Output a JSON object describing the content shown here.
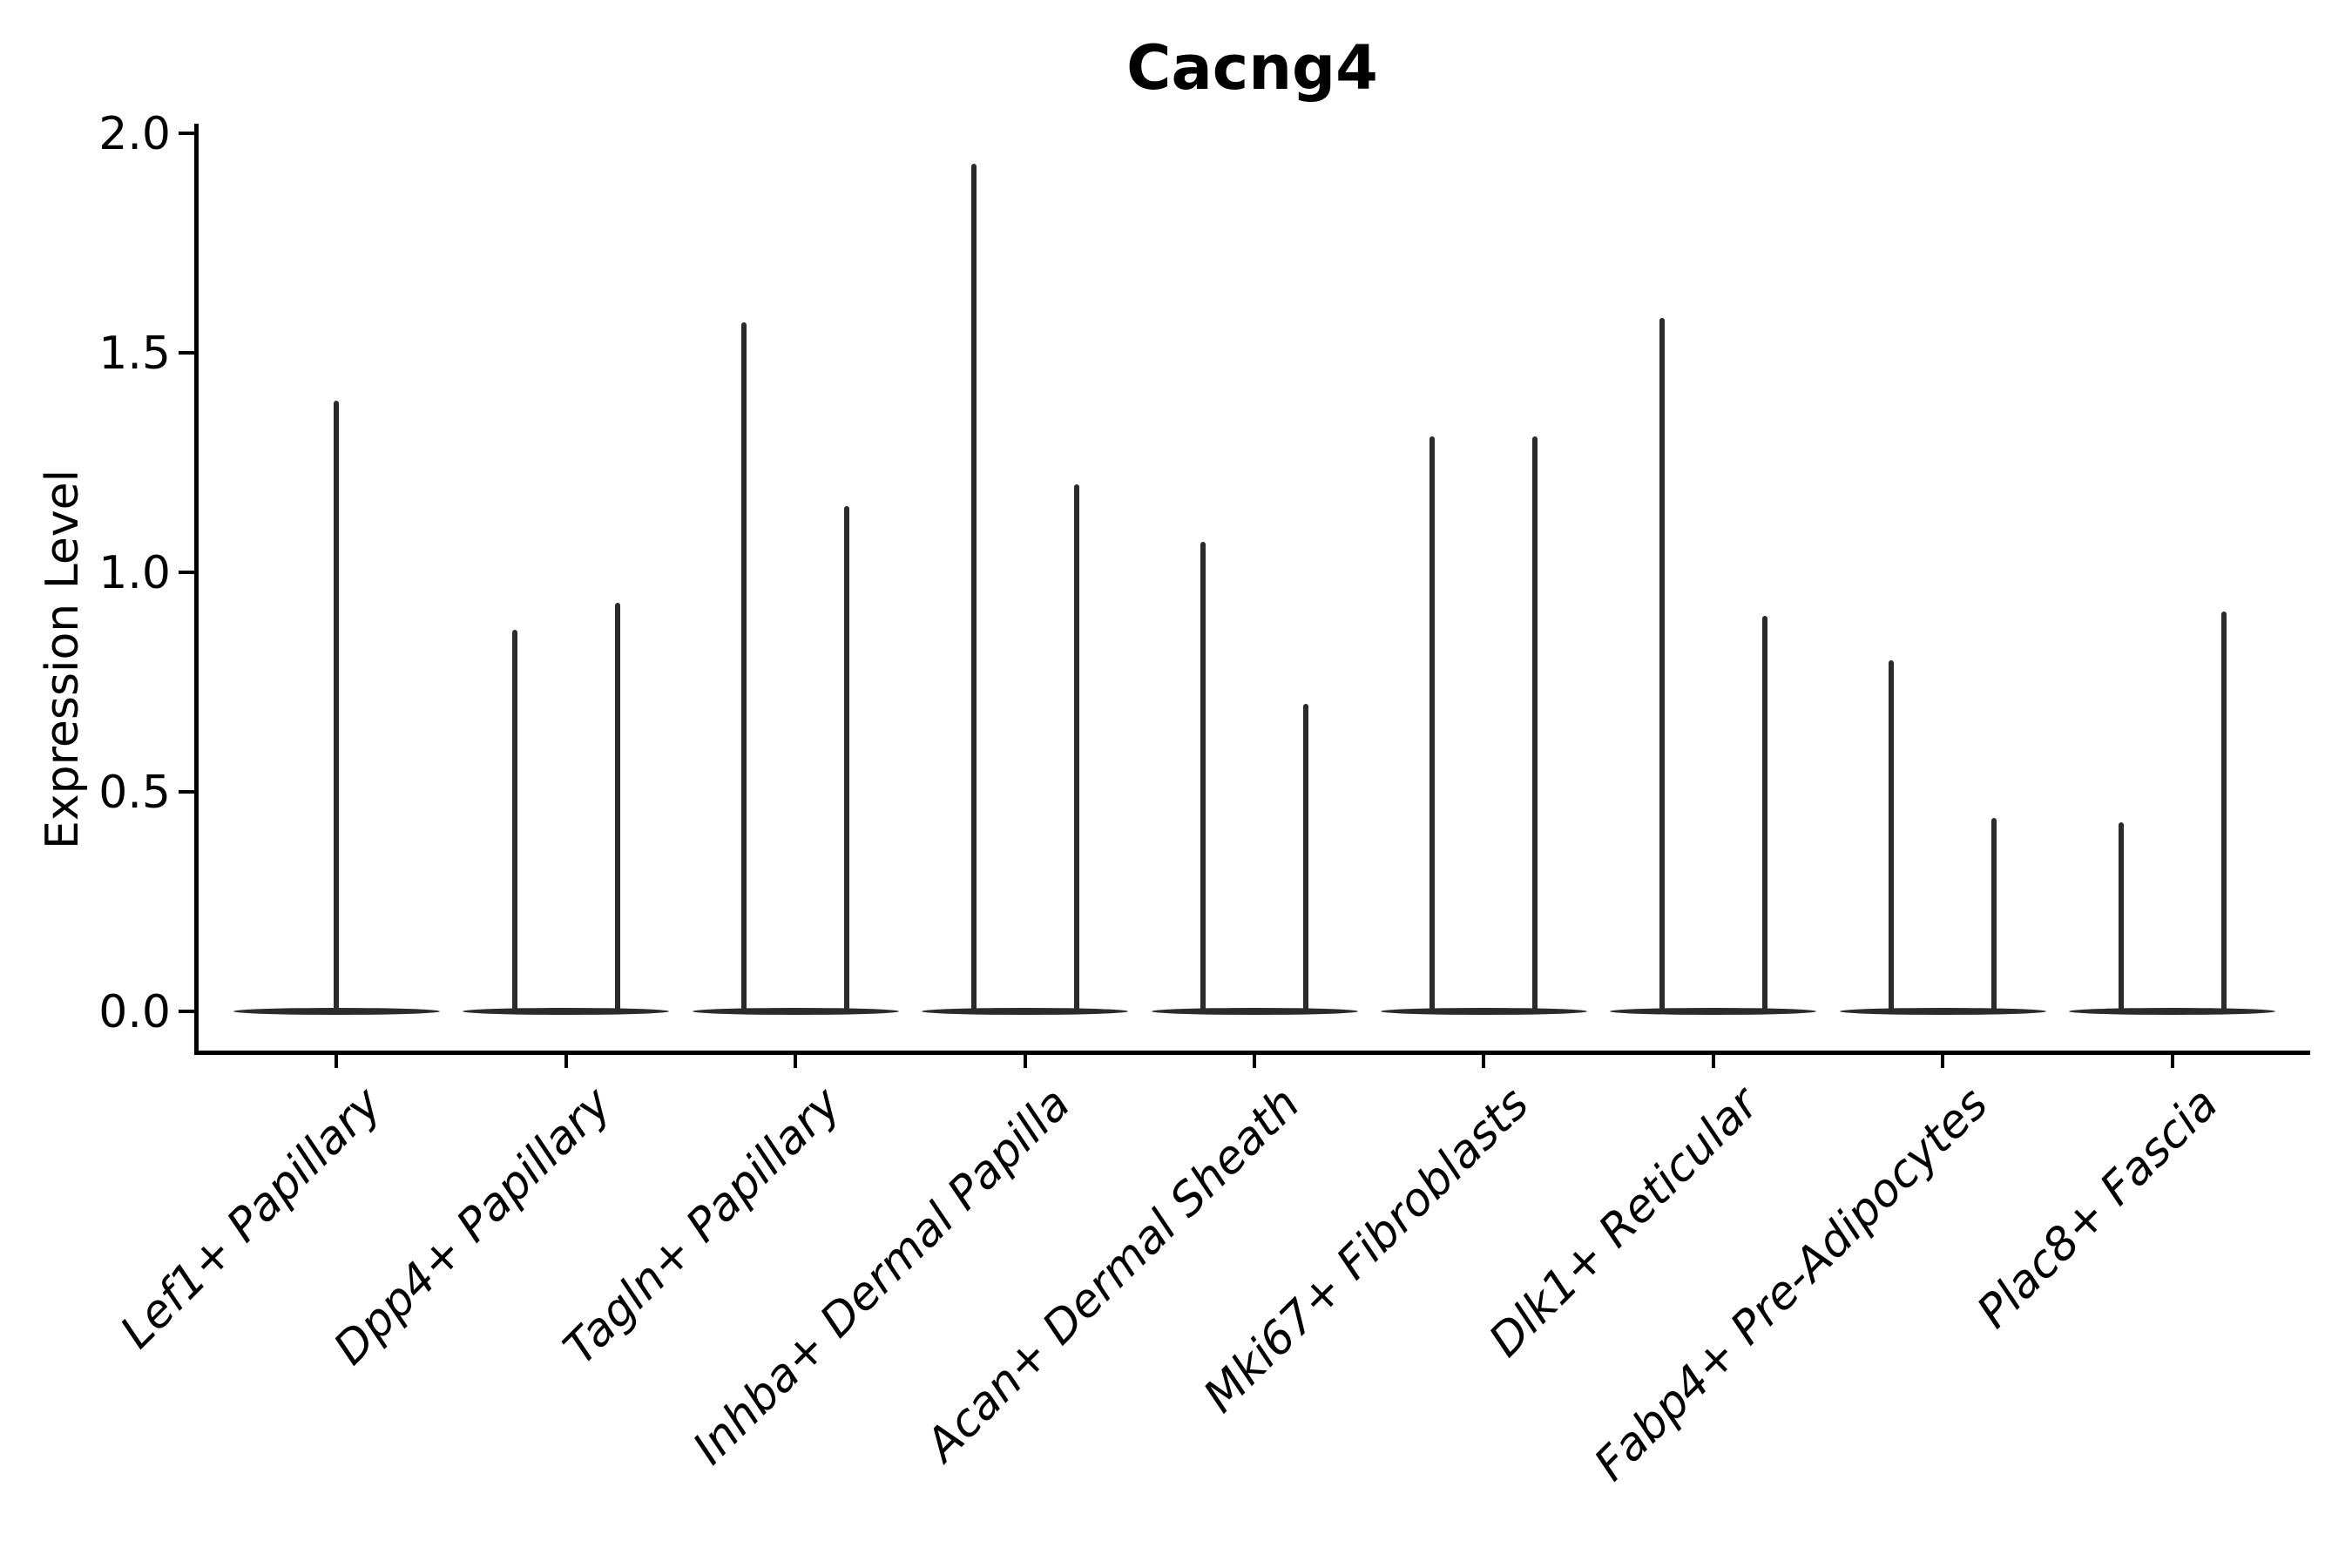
{
  "chart_data": {
    "type": "violin",
    "title": "Cacng4",
    "ylabel": "Expression Level",
    "xlabel": "",
    "grid": false,
    "legend": false,
    "background_color": "#ffffff",
    "ink_color": "#2b2b2b",
    "axis_color": "#000000",
    "ylim": [
      -0.09,
      2.02
    ],
    "yticks": [
      {
        "label": "0.0",
        "value": 0.0
      },
      {
        "label": "0.5",
        "value": 0.5
      },
      {
        "label": "1.0",
        "value": 1.0
      },
      {
        "label": "1.5",
        "value": 1.5
      },
      {
        "label": "2.0",
        "value": 2.0
      }
    ],
    "categories": [
      "Lef1+ Papillary",
      "Dpp4+ Papillary",
      "Tagln+ Papillary",
      "Inhba+ Dermal Papilla",
      "Acan+ Dermal Sheath",
      "Mki67+ Fibroblasts",
      "Dlk1+ Reticular",
      "Fabp4+ Pre-Adipocytes",
      "Plac8+ Fascia"
    ],
    "series": [
      {
        "category": "Lef1+ Papillary",
        "violins": [
          {
            "position": 0,
            "min": 0,
            "max": 1.39
          }
        ]
      },
      {
        "category": "Dpp4+ Papillary",
        "violins": [
          {
            "position": -1,
            "min": 0,
            "max": 0.87
          },
          {
            "position": 1,
            "min": 0,
            "max": 0.93
          }
        ]
      },
      {
        "category": "Tagln+ Papillary",
        "violins": [
          {
            "position": -1,
            "min": 0,
            "max": 1.57
          },
          {
            "position": 1,
            "min": 0,
            "max": 1.15
          }
        ]
      },
      {
        "category": "Inhba+ Dermal Papilla",
        "violins": [
          {
            "position": -1,
            "min": 0,
            "max": 1.93
          },
          {
            "position": 1,
            "min": 0,
            "max": 1.2
          }
        ]
      },
      {
        "category": "Acan+ Dermal Sheath",
        "violins": [
          {
            "position": -1,
            "min": 0,
            "max": 1.07
          },
          {
            "position": 1,
            "min": 0,
            "max": 0.7
          }
        ]
      },
      {
        "category": "Mki67+ Fibroblasts",
        "violins": [
          {
            "position": -1,
            "min": 0,
            "max": 1.31
          },
          {
            "position": 1,
            "min": 0,
            "max": 1.31
          }
        ]
      },
      {
        "category": "Dlk1+ Reticular",
        "violins": [
          {
            "position": -1,
            "min": 0,
            "max": 1.58
          },
          {
            "position": 1,
            "min": 0,
            "max": 0.9
          }
        ]
      },
      {
        "category": "Fabp4+ Pre-Adipocytes",
        "violins": [
          {
            "position": -1,
            "min": 0,
            "max": 0.8
          },
          {
            "position": 1,
            "min": 0,
            "max": 0.44
          }
        ]
      },
      {
        "category": "Plac8+ Fascia",
        "violins": [
          {
            "position": -1,
            "min": 0,
            "max": 0.43
          },
          {
            "position": 1,
            "min": 0,
            "max": 0.91
          }
        ]
      }
    ]
  }
}
